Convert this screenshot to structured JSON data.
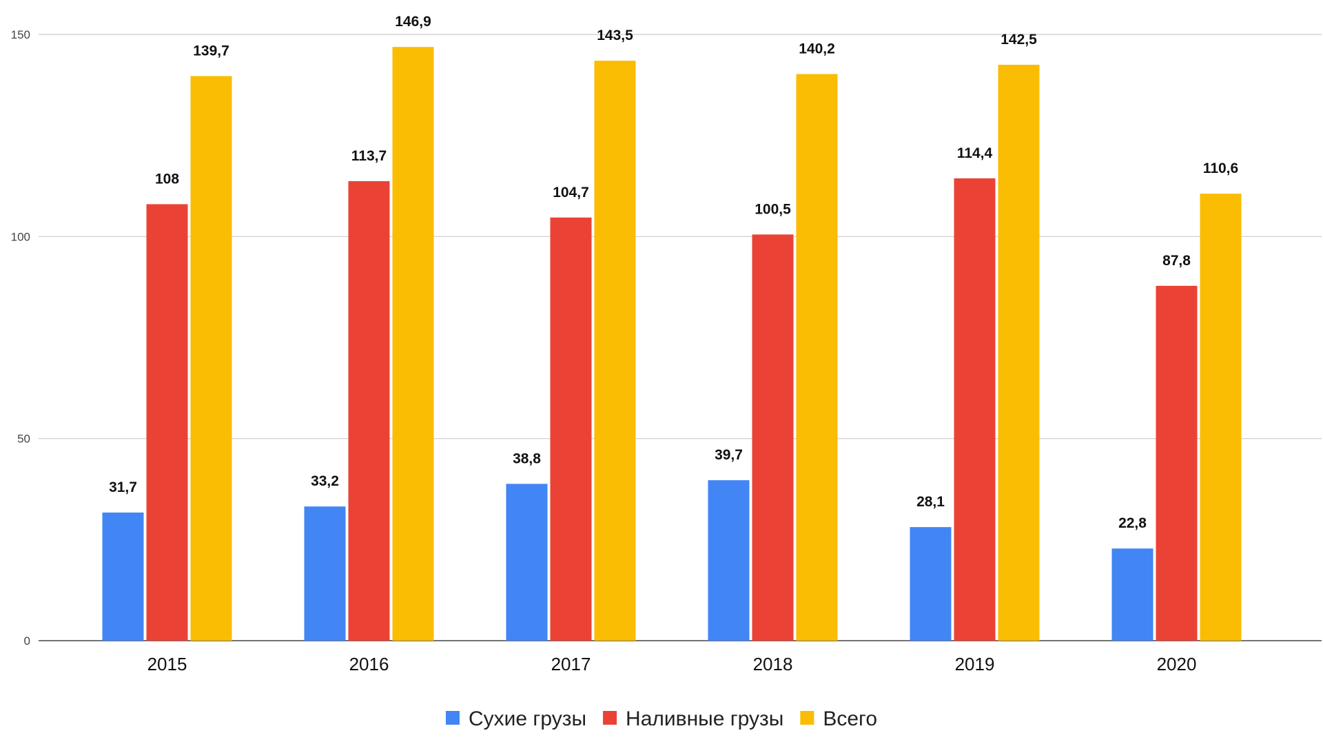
{
  "chart_data": {
    "type": "bar",
    "title": "",
    "xlabel": "",
    "ylabel": "",
    "ylim": [
      0,
      150
    ],
    "yticks": [
      0,
      50,
      100,
      150
    ],
    "grid": true,
    "legend_position": "bottom",
    "categories": [
      "2015",
      "2016",
      "2017",
      "2018",
      "2019",
      "2020"
    ],
    "series": [
      {
        "name": "Сухие грузы",
        "color": "#4285F4",
        "values": [
          31.7,
          33.2,
          38.8,
          39.7,
          28.1,
          22.8
        ],
        "labels": [
          "31,7",
          "33,2",
          "38,8",
          "39,7",
          "28,1",
          "22,8"
        ]
      },
      {
        "name": "Наливные грузы",
        "color": "#EA4335",
        "values": [
          108,
          113.7,
          104.7,
          100.5,
          114.4,
          87.8
        ],
        "labels": [
          "108",
          "113,7",
          "104,7",
          "100,5",
          "114,4",
          "87,8"
        ]
      },
      {
        "name": "Всего",
        "color": "#FBBC04",
        "values": [
          139.7,
          146.9,
          143.5,
          140.2,
          142.5,
          110.6
        ],
        "labels": [
          "139,7",
          "146,9",
          "143,5",
          "140,2",
          "142,5",
          "110,6"
        ]
      }
    ]
  }
}
